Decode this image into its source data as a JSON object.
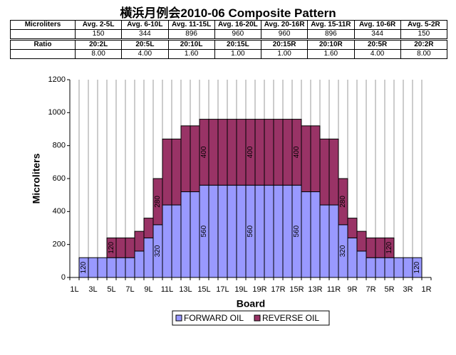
{
  "title": "横浜月例会2010-06 Composite Pattern",
  "table": {
    "rows": [
      [
        "Microliters",
        "Avg. 2-5L",
        "Avg. 6-10L",
        "Avg. 11-15L",
        "Avg. 16-20L",
        "Avg. 20-16R",
        "Avg. 15-11R",
        "Avg. 10-6R",
        "Avg. 5-2R"
      ],
      [
        "",
        "150",
        "344",
        "896",
        "960",
        "960",
        "896",
        "344",
        "150"
      ],
      [
        "Ratio",
        "20:2L",
        "20:5L",
        "20:10L",
        "20:15L",
        "20:15R",
        "20:10R",
        "20:5R",
        "20:2R"
      ],
      [
        "",
        "8.00",
        "4.00",
        "1.60",
        "1.00",
        "1.00",
        "1.60",
        "4.00",
        "8.00"
      ]
    ]
  },
  "chart_data": {
    "type": "stacked-bar",
    "x_label": "Board",
    "y_label": "Microliters",
    "categories": [
      "1L",
      null,
      "3L",
      null,
      "5L",
      null,
      "7L",
      null,
      "9L",
      null,
      "11L",
      null,
      "13L",
      null,
      "15L",
      null,
      "17L",
      null,
      "19L",
      null,
      "19R",
      null,
      "17R",
      null,
      "15R",
      null,
      "13R",
      null,
      "11R",
      null,
      "9R",
      null,
      "7R",
      null,
      "5R",
      null,
      "3R",
      null,
      "1R"
    ],
    "series": [
      {
        "name": "FORWARD OIL",
        "color": "#9999ff",
        "values": [
          null,
          120,
          120,
          120,
          120,
          120,
          120,
          160,
          240,
          320,
          440,
          440,
          520,
          520,
          560,
          560,
          560,
          560,
          560,
          560,
          560,
          560,
          560,
          560,
          560,
          520,
          520,
          440,
          440,
          320,
          240,
          160,
          120,
          120,
          120,
          120,
          120,
          120,
          null
        ],
        "value_labels": [
          null,
          "120",
          null,
          null,
          null,
          null,
          null,
          null,
          null,
          "320",
          null,
          null,
          null,
          null,
          "560",
          null,
          null,
          null,
          null,
          "560",
          null,
          null,
          null,
          null,
          "560",
          null,
          null,
          null,
          null,
          "320",
          null,
          null,
          null,
          null,
          null,
          null,
          null,
          "120",
          null
        ]
      },
      {
        "name": "REVERSE OIL",
        "color": "#993366",
        "values": [
          null,
          0,
          0,
          0,
          120,
          120,
          120,
          120,
          120,
          280,
          400,
          400,
          400,
          400,
          400,
          400,
          400,
          400,
          400,
          400,
          400,
          400,
          400,
          400,
          400,
          400,
          400,
          400,
          400,
          280,
          120,
          120,
          120,
          120,
          120,
          0,
          0,
          0,
          null
        ],
        "value_labels": [
          null,
          null,
          null,
          null,
          "120",
          null,
          null,
          null,
          null,
          "280",
          null,
          null,
          null,
          null,
          "400",
          null,
          null,
          null,
          null,
          "400",
          null,
          null,
          null,
          null,
          "400",
          null,
          null,
          null,
          null,
          "280",
          null,
          null,
          null,
          null,
          "120",
          null,
          null,
          null,
          null
        ]
      }
    ],
    "ylim": [
      0,
      1200
    ],
    "yticks": [
      0,
      200,
      400,
      600,
      800,
      1000,
      1200
    ],
    "grid": "x",
    "legend": "bottom"
  }
}
